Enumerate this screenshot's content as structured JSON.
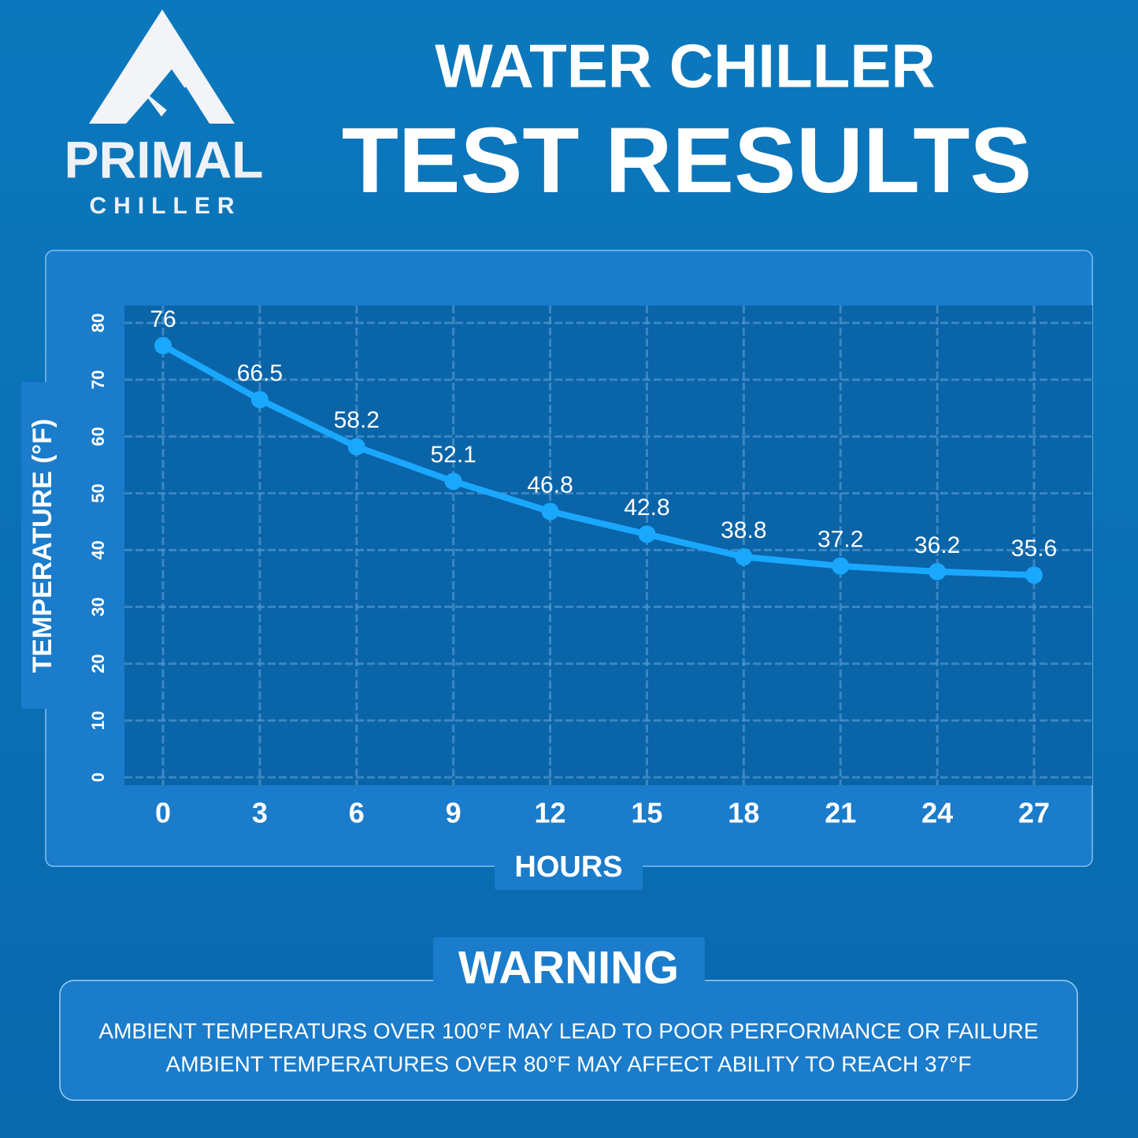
{
  "logo": {
    "name": "PRIMAL",
    "sub": "CHILLER"
  },
  "chart_data": {
    "type": "line",
    "title": "WATER CHILLER",
    "subtitle": "TEST RESULTS",
    "x_label": "HOURS",
    "y_label": "TEMPERATURE (°F)",
    "categories": [
      "0",
      "3",
      "6",
      "9",
      "12",
      "15",
      "18",
      "21",
      "24",
      "27"
    ],
    "values": [
      76,
      66.5,
      58.2,
      52.1,
      46.8,
      42.8,
      38.8,
      37.2,
      36.2,
      35.6
    ],
    "color": "#1aa8ff",
    "ylim": [
      0,
      80
    ],
    "yticks": [
      0,
      10,
      20,
      30,
      40,
      50,
      60,
      70,
      80
    ],
    "grid": true
  },
  "warning": {
    "title": "WARNING",
    "lines": [
      "AMBIENT TEMPERATURS OVER 100°F MAY LEAD TO POOR PERFORMANCE OR FAILURE",
      "AMBIENT TEMPERATURES OVER 80°F MAY AFFECT ABILITY TO REACH 37°F"
    ]
  }
}
